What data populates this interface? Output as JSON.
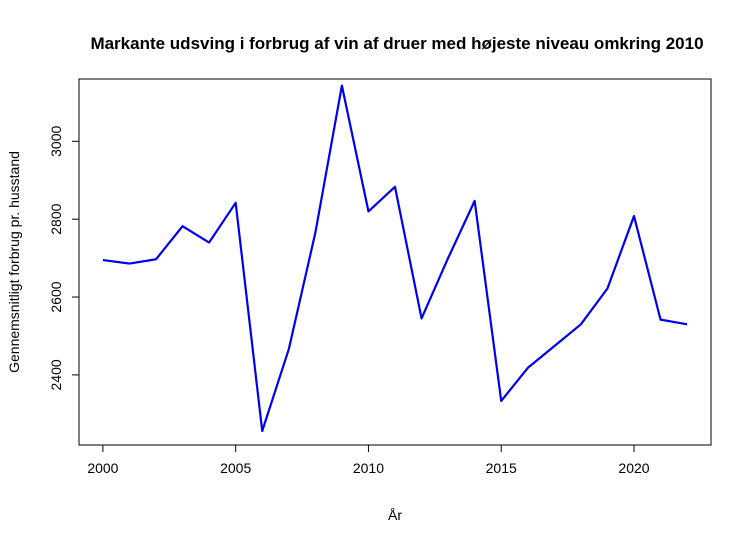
{
  "chart_data": {
    "type": "line",
    "title": "Markante udsving i forbrug af vin af druer med højeste niveau omkring 2010",
    "xlabel": "År",
    "ylabel": "Gennemsnitligt forbrug pr. husstand",
    "x": [
      2000,
      2001,
      2002,
      2003,
      2004,
      2005,
      2006,
      2007,
      2008,
      2009,
      2010,
      2011,
      2012,
      2013,
      2014,
      2015,
      2016,
      2017,
      2018,
      2019,
      2020,
      2021,
      2022
    ],
    "series": [
      {
        "values": [
          2695,
          2686,
          2697,
          2782,
          2740,
          2842,
          2256,
          2466,
          2765,
          3143,
          2820,
          2883,
          2545,
          2700,
          2847,
          2333,
          2418,
          2474,
          2530,
          2622,
          2808,
          2542,
          2530
        ],
        "color": "#0000ee"
      }
    ],
    "xticks": [
      2000,
      2005,
      2010,
      2015,
      2020
    ],
    "yticks": [
      2400,
      2600,
      2800,
      3000
    ],
    "xlim": [
      1999.1,
      2022.9
    ],
    "ylim": [
      2220,
      3160
    ],
    "grid": false,
    "legend": "none"
  }
}
